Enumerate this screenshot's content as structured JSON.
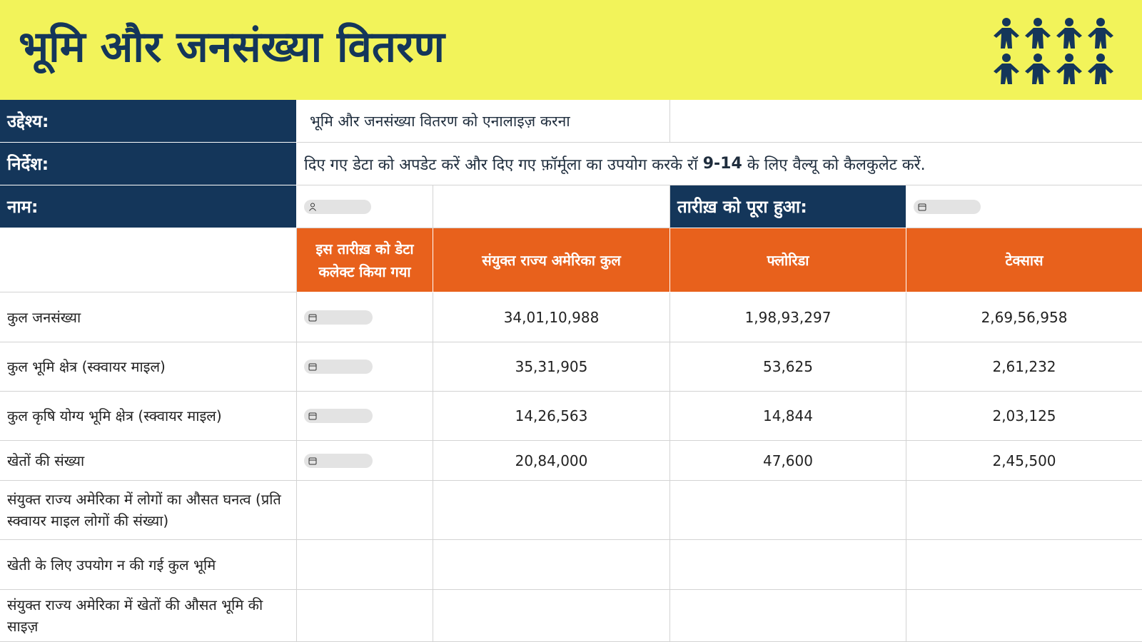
{
  "header": {
    "title": "भूमि और जनसंख्या वितरण"
  },
  "info": {
    "objective_label": "उद्देश्य:",
    "objective": "भूमि और जनसंख्या वितरण को एनालाइज़ करना",
    "instructions_label": "निर्देश:",
    "instructions": [
      "दिए गए डेटा को अपडेट करें और दिए गए फ़ॉर्मूला का उपयोग करके रॉ",
      "9-14",
      "के लिए वैल्यू को कैलकुलेट करें."
    ],
    "name_label": "नाम:",
    "completed_label": "तारीख़ को पूरा हुआ:"
  },
  "table": {
    "columns": [
      "इस तारीख़ को डेटा कलेक्ट किया गया",
      "संयुक्त राज्य अमेरिका कुल",
      "फ्लोरिडा",
      "टेक्सास"
    ],
    "rows": [
      {
        "label": "कुल जनसंख्या",
        "values": [
          "34,01,10,988",
          "1,98,93,297",
          "2,69,56,958"
        ]
      },
      {
        "label": "कुल भूमि क्षेत्र (स्क्वायर माइल)",
        "values": [
          "35,31,905",
          "53,625",
          "2,61,232"
        ]
      },
      {
        "label": "कुल कृषि योग्य भूमि क्षेत्र (स्क्वायर माइल)",
        "values": [
          "14,26,563",
          "14,844",
          "2,03,125"
        ]
      },
      {
        "label": "खेतों की संख्या",
        "values": [
          "20,84,000",
          "47,600",
          "2,45,500"
        ]
      },
      {
        "label": "संयुक्त राज्य अमेरिका में लोगों का औसत घनत्व (प्रति स्क्वायर माइल लोगों की संख्या)"
      },
      {
        "label": "खेती के लिए उपयोग न की गई कुल भूमि"
      },
      {
        "label": "संयुक्त राज्य अमेरिका में खेतों की औसत भूमि की साइज़"
      }
    ]
  }
}
